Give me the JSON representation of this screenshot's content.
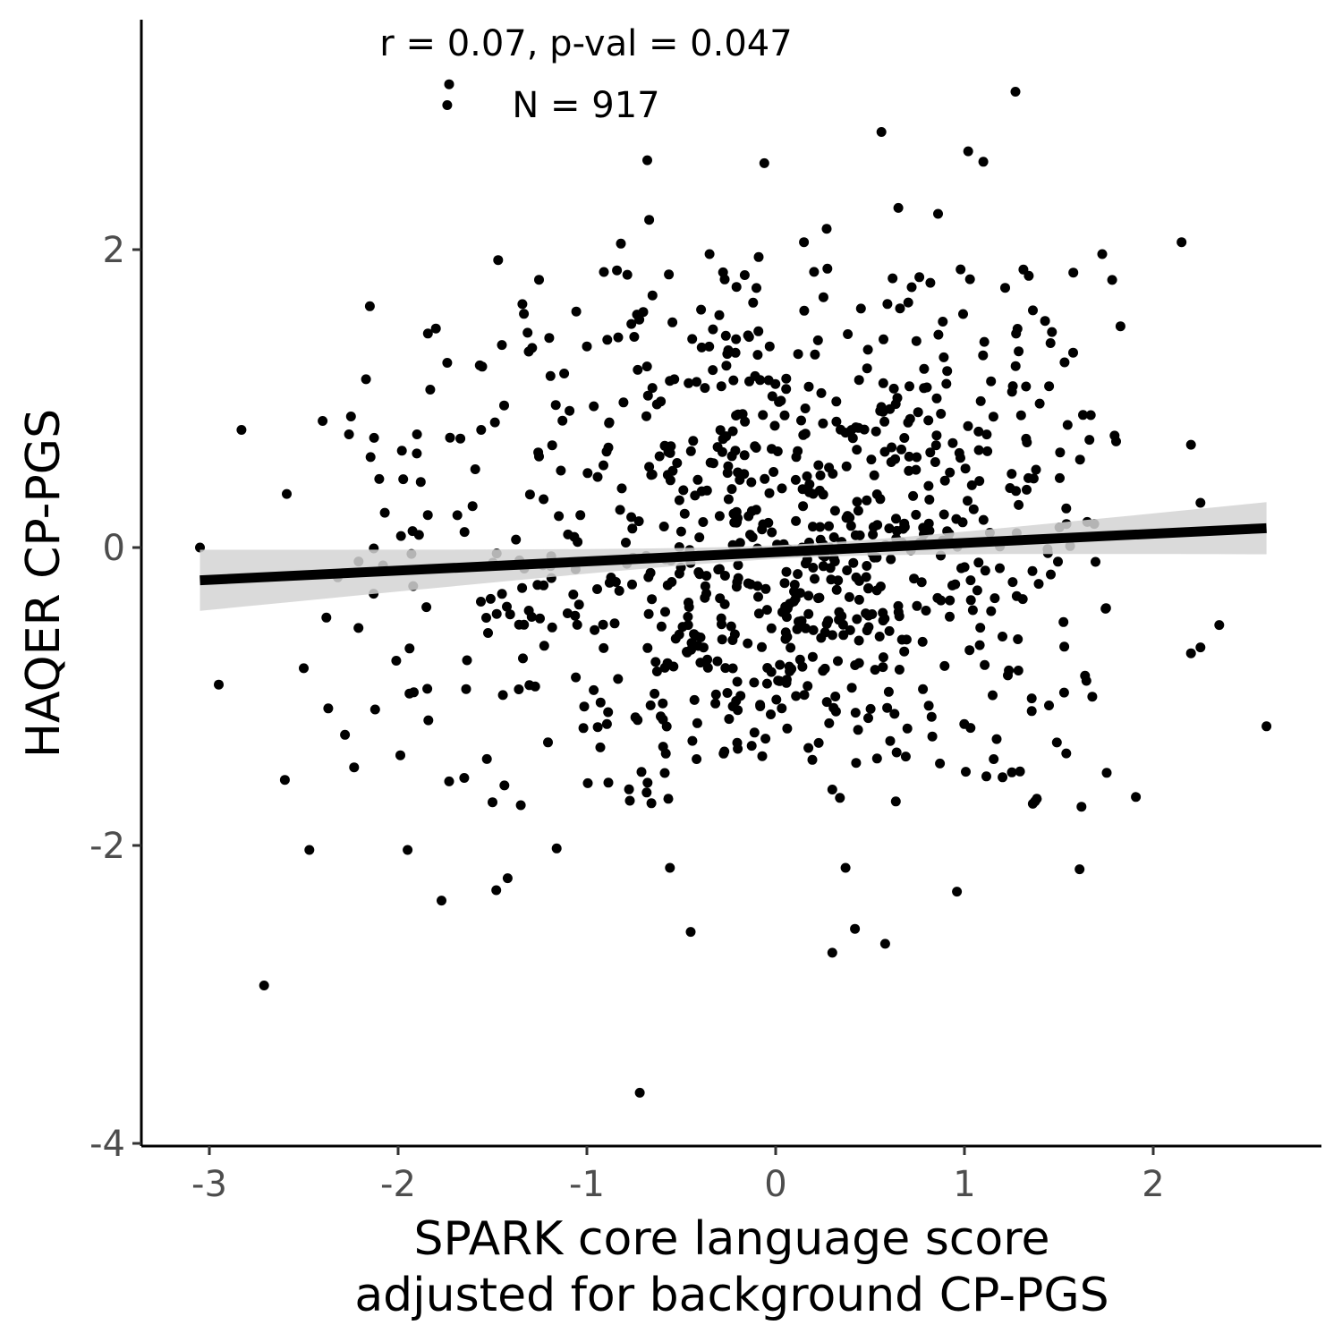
{
  "chart_data": {
    "type": "scatter",
    "title": "",
    "xlabel_lines": [
      "SPARK core language score",
      "adjusted for background CP-PGS"
    ],
    "ylabel": "HAQER CP-PGS",
    "xlim": [
      -3.35,
      2.9
    ],
    "ylim": [
      -4.0,
      3.55
    ],
    "x_ticks": [
      -3,
      -2,
      -1,
      0,
      1,
      2
    ],
    "x_tick_labels": [
      "-3",
      "-2",
      "-1",
      "0",
      "1",
      "2"
    ],
    "y_ticks": [
      -4,
      -2,
      0,
      2
    ],
    "y_tick_labels": [
      "-4",
      "-2",
      "0",
      "2"
    ],
    "annotation_line1": "r = 0.07, p-val = 0.047",
    "annotation_line2": "N = 917",
    "n": 917,
    "grid": false,
    "legend": "none",
    "colors": {
      "points": "#000000",
      "fit_line": "#000000",
      "confidence_band": "#d3d3d3"
    },
    "regression": {
      "x_range": [
        -3.05,
        2.6
      ],
      "y_start": -0.22,
      "y_end": 0.13,
      "ci_lower": [
        -0.43,
        -0.04
      ],
      "ci_upper": [
        -0.02,
        0.31
      ]
    },
    "highlighted_points": [
      {
        "x": -3.05,
        "y": 0.0
      },
      {
        "x": -2.95,
        "y": -0.92
      },
      {
        "x": -2.83,
        "y": 0.79
      },
      {
        "x": -2.71,
        "y": -2.94
      },
      {
        "x": -2.6,
        "y": -1.56
      },
      {
        "x": -2.59,
        "y": 0.36
      },
      {
        "x": -2.5,
        "y": -0.81
      },
      {
        "x": -2.47,
        "y": -2.03
      },
      {
        "x": -2.4,
        "y": 0.85
      },
      {
        "x": -2.38,
        "y": -0.47
      },
      {
        "x": -2.37,
        "y": -1.08
      },
      {
        "x": -2.32,
        "y": -0.2
      },
      {
        "x": -2.26,
        "y": 0.76
      },
      {
        "x": -2.25,
        "y": 0.88
      },
      {
        "x": -2.21,
        "y": -0.54
      },
      {
        "x": -2.17,
        "y": 1.13
      },
      {
        "x": -2.15,
        "y": 1.62
      },
      {
        "x": -2.13,
        "y": -0.31
      },
      {
        "x": -2.1,
        "y": 0.46
      },
      {
        "x": -2.08,
        "y": -0.12
      },
      {
        "x": -2.01,
        "y": -0.76
      },
      {
        "x": -1.98,
        "y": 0.65
      },
      {
        "x": -1.95,
        "y": -2.03
      },
      {
        "x": -1.94,
        "y": -0.98
      },
      {
        "x": -1.9,
        "y": 0.76
      },
      {
        "x": -1.88,
        "y": 0.44
      },
      {
        "x": -1.85,
        "y": -0.4
      },
      {
        "x": -1.84,
        "y": -1.16
      },
      {
        "x": -1.83,
        "y": 1.06
      },
      {
        "x": -1.8,
        "y": 1.47
      },
      {
        "x": -1.77,
        "y": -2.37
      },
      {
        "x": -1.74,
        "y": 1.24
      },
      {
        "x": -1.73,
        "y": 3.11
      },
      {
        "x": -1.73,
        "y": -1.57
      },
      {
        "x": -1.64,
        "y": -0.95
      },
      {
        "x": -1.56,
        "y": 0.79
      },
      {
        "x": -1.53,
        "y": -1.42
      },
      {
        "x": -1.5,
        "y": -1.71
      },
      {
        "x": -1.48,
        "y": -2.3
      },
      {
        "x": -1.47,
        "y": 1.93
      },
      {
        "x": -1.45,
        "y": 1.36
      },
      {
        "x": -1.42,
        "y": -2.22
      },
      {
        "x": -1.35,
        "y": -1.73
      },
      {
        "x": -1.29,
        "y": 1.34
      },
      {
        "x": -1.16,
        "y": -2.02
      },
      {
        "x": -1.0,
        "y": 1.35
      },
      {
        "x": -0.91,
        "y": 1.85
      },
      {
        "x": -0.82,
        "y": 2.04
      },
      {
        "x": -0.72,
        "y": -3.66
      },
      {
        "x": -0.68,
        "y": 2.6
      },
      {
        "x": -0.67,
        "y": 2.2
      },
      {
        "x": -0.56,
        "y": -2.15
      },
      {
        "x": -0.45,
        "y": -2.58
      },
      {
        "x": -0.35,
        "y": 1.97
      },
      {
        "x": -0.27,
        "y": 1.8
      },
      {
        "x": -0.09,
        "y": 1.95
      },
      {
        "x": -0.06,
        "y": 2.58
      },
      {
        "x": 0.15,
        "y": 2.05
      },
      {
        "x": 0.27,
        "y": 2.14
      },
      {
        "x": 0.3,
        "y": -2.72
      },
      {
        "x": 0.37,
        "y": -2.15
      },
      {
        "x": 0.42,
        "y": -2.56
      },
      {
        "x": 0.56,
        "y": 2.79
      },
      {
        "x": 0.58,
        "y": -2.66
      },
      {
        "x": 0.65,
        "y": 2.28
      },
      {
        "x": 0.86,
        "y": 2.24
      },
      {
        "x": 0.96,
        "y": -2.31
      },
      {
        "x": 1.02,
        "y": 2.66
      },
      {
        "x": 1.1,
        "y": 2.59
      },
      {
        "x": 1.27,
        "y": 3.06
      },
      {
        "x": 1.62,
        "y": -1.74
      },
      {
        "x": 1.61,
        "y": -2.16
      },
      {
        "x": 1.73,
        "y": 1.97
      },
      {
        "x": 2.15,
        "y": 2.05
      },
      {
        "x": 2.2,
        "y": 0.69
      },
      {
        "x": 2.2,
        "y": -0.71
      },
      {
        "x": 2.25,
        "y": 0.3
      },
      {
        "x": 2.25,
        "y": -0.67
      },
      {
        "x": 2.35,
        "y": -0.52
      },
      {
        "x": 2.6,
        "y": -1.2
      },
      {
        "x": -1.74,
        "y": 2.97
      }
    ],
    "cloud": {
      "x_mean": 0.09,
      "x_sd": 0.93,
      "x_min": -2.3,
      "x_max": 1.95,
      "y_mean": 0.0,
      "y_sd": 1.0,
      "y_min": -1.75,
      "y_max": 1.9,
      "slope": 0.07
    }
  }
}
